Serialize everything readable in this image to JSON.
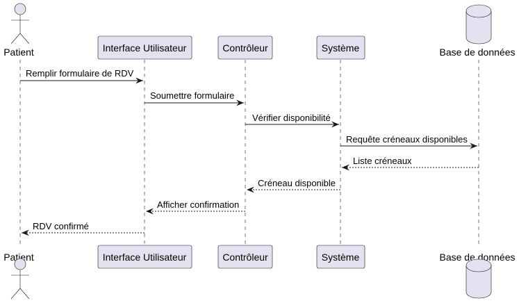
{
  "participants": [
    {
      "id": "patient",
      "label": "Patient",
      "kind": "actor"
    },
    {
      "id": "ui",
      "label": "Interface Utilisateur",
      "kind": "participant"
    },
    {
      "id": "ctrl",
      "label": "Contrôleur",
      "kind": "participant"
    },
    {
      "id": "sys",
      "label": "Système",
      "kind": "participant"
    },
    {
      "id": "db",
      "label": "Base de données",
      "kind": "database"
    }
  ],
  "messages": [
    {
      "from": "patient",
      "to": "ui",
      "text": "Remplir formulaire de RDV",
      "style": "solid"
    },
    {
      "from": "ui",
      "to": "ctrl",
      "text": "Soumettre formulaire",
      "style": "solid"
    },
    {
      "from": "ctrl",
      "to": "sys",
      "text": "Vérifier disponibilité",
      "style": "solid"
    },
    {
      "from": "sys",
      "to": "db",
      "text": "Requête créneaux disponibles",
      "style": "solid"
    },
    {
      "from": "db",
      "to": "sys",
      "text": "Liste créneaux",
      "style": "dashed"
    },
    {
      "from": "sys",
      "to": "ctrl",
      "text": "Créneau disponible",
      "style": "dashed"
    },
    {
      "from": "ctrl",
      "to": "ui",
      "text": "Afficher confirmation",
      "style": "dashed"
    },
    {
      "from": "ui",
      "to": "patient",
      "text": "RDV confirmé",
      "style": "dashed"
    }
  ],
  "colors": {
    "participant_fill": "#E2E2F0",
    "stroke": "#181818"
  }
}
